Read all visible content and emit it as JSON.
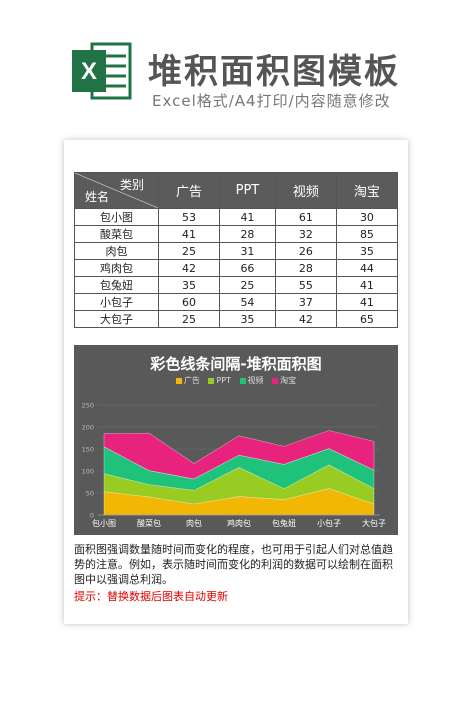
{
  "header": {
    "title": "堆积面积图模板",
    "subtitle": "Excel格式/A4打印/内容随意修改",
    "icon_letter": "X",
    "icon_color": "#217346"
  },
  "table": {
    "corner_top": "类别",
    "corner_bottom": "姓名",
    "columns": [
      "广告",
      "PPT",
      "视频",
      "淘宝"
    ],
    "rows": [
      {
        "name": "包小图",
        "values": [
          "53",
          "41",
          "61",
          "30"
        ]
      },
      {
        "name": "酸菜包",
        "values": [
          "41",
          "28",
          "32",
          "85"
        ]
      },
      {
        "name": "肉包",
        "values": [
          "25",
          "31",
          "26",
          "35"
        ]
      },
      {
        "name": "鸡肉包",
        "values": [
          "42",
          "66",
          "28",
          "44"
        ]
      },
      {
        "name": "包兔妞",
        "values": [
          "35",
          "25",
          "55",
          "41"
        ]
      },
      {
        "name": "小包子",
        "values": [
          "60",
          "54",
          "37",
          "41"
        ]
      },
      {
        "name": "大包子",
        "values": [
          "25",
          "35",
          "42",
          "65"
        ]
      }
    ]
  },
  "chart_data": {
    "type": "area",
    "stacked": true,
    "title": "彩色线条间隔-堆积面积图",
    "categories": [
      "包小图",
      "酸菜包",
      "肉包",
      "鸡肉包",
      "包兔妞",
      "小包子",
      "大包子"
    ],
    "series": [
      {
        "name": "广告",
        "values": [
          53,
          41,
          25,
          42,
          35,
          60,
          25
        ],
        "color": "#f2b705"
      },
      {
        "name": "PPT",
        "values": [
          41,
          28,
          31,
          66,
          25,
          54,
          35
        ],
        "color": "#99cc22"
      },
      {
        "name": "视频",
        "values": [
          61,
          32,
          26,
          28,
          55,
          37,
          42
        ],
        "color": "#1ec27a"
      },
      {
        "name": "淘宝",
        "values": [
          30,
          85,
          35,
          44,
          41,
          41,
          65
        ],
        "color": "#e8237e"
      }
    ],
    "yticks": [
      "0",
      "50",
      "100",
      "150",
      "200",
      "250"
    ],
    "ylim": [
      0,
      250
    ],
    "legend_position": "top",
    "grid": true
  },
  "description": "面积图强调数量随时间而变化的程度，也可用于引起人们对总值趋势的注意。例如，表示随时间而变化的利润的数据可以绘制在面积图中以强调总利润。",
  "tip": "提示：替换数据后图表自动更新"
}
